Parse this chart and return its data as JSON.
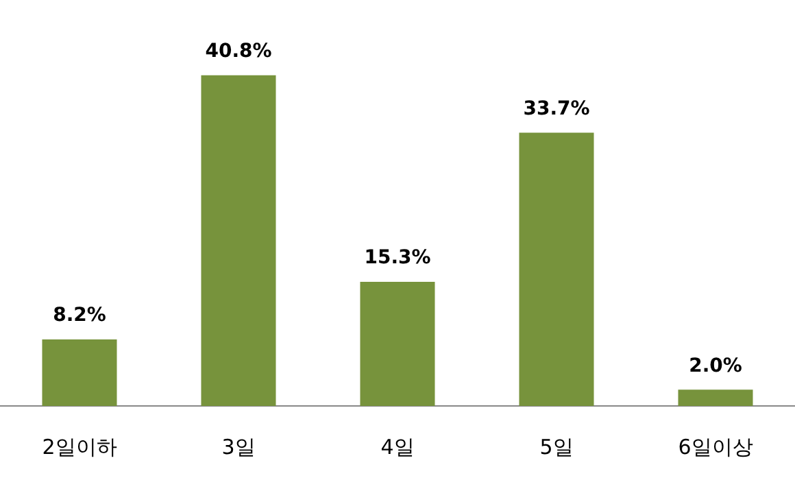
{
  "chart_data": {
    "type": "bar",
    "categories": [
      "2일이하",
      "3일",
      "4일",
      "5일",
      "6일이상"
    ],
    "values": [
      8.2,
      40.8,
      15.3,
      33.7,
      2.0
    ],
    "value_labels": [
      "8.2%",
      "40.8%",
      "15.3%",
      "33.7%",
      "2.0%"
    ],
    "color": "#77933c",
    "grid": false,
    "legend": false,
    "tick_labels": "x"
  }
}
